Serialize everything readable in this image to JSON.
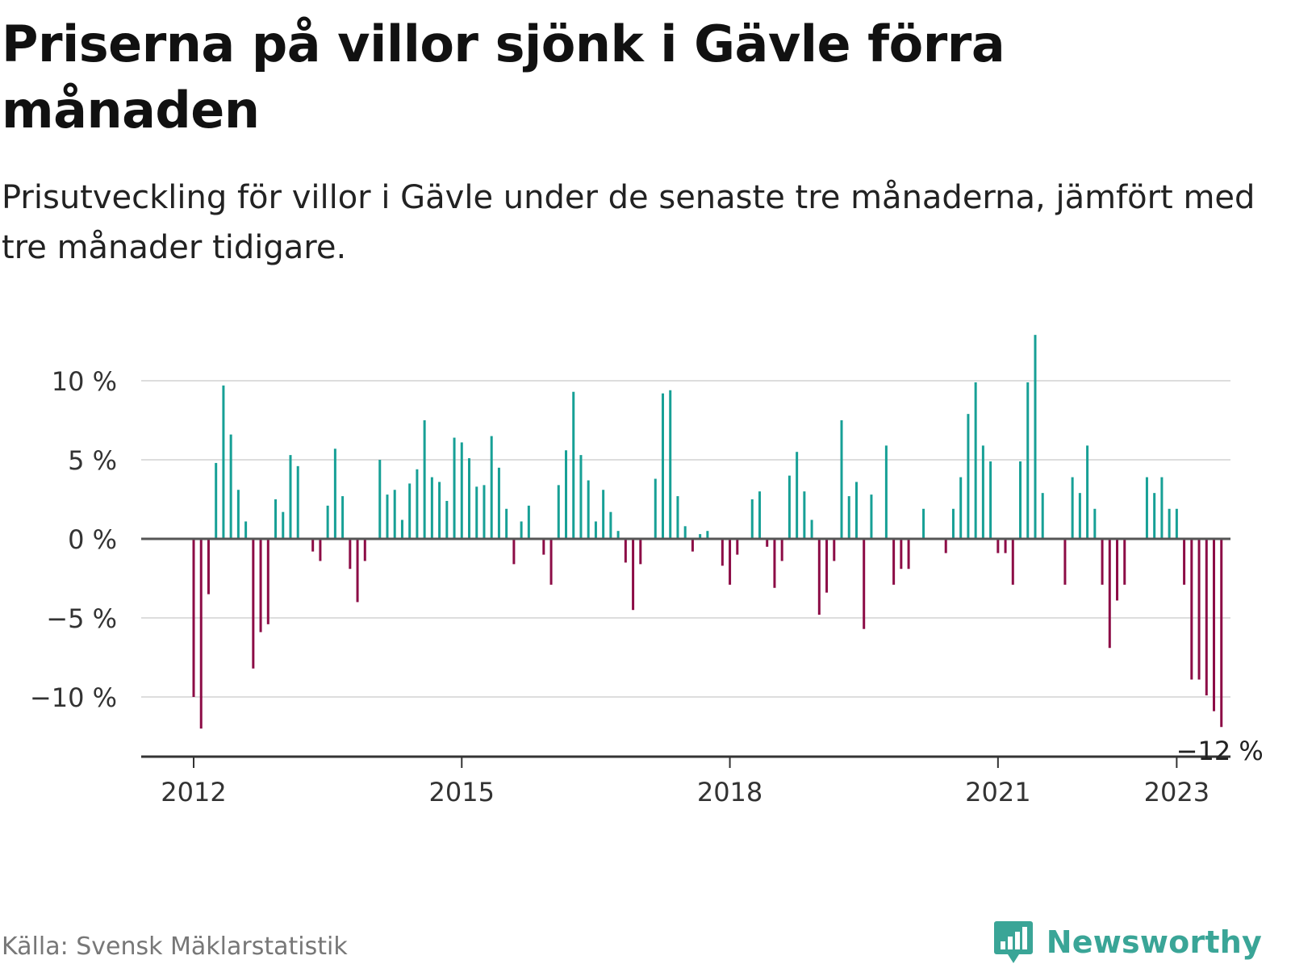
{
  "header": {
    "title": "Priserna på villor sjönk i Gävle förra månaden",
    "subtitle": "Prisutveckling för villor i Gävle under de senaste tre månaderna, jämfört med tre månader tidigare."
  },
  "footer": {
    "source": "Källa: Svensk Mäklarstatistik",
    "brand": "Newsworthy"
  },
  "colors": {
    "positive": "#17a096",
    "negative": "#8c0c46",
    "grid": "#dddddd",
    "axis": "#333333",
    "brand": "#3aa597"
  },
  "icons": {
    "brand_logo": "bar-chart-speech-bubble-icon"
  },
  "chart_data": {
    "type": "bar",
    "title": "Priserna på villor sjönk i Gävle förra månaden",
    "subtitle": "Prisutveckling för villor i Gävle under de senaste tre månaderna, jämfört med tre månader tidigare.",
    "xlabel": "",
    "ylabel": "",
    "unit": "%",
    "x_start": "2012-01",
    "x_ticks": [
      "2012",
      "2015",
      "2018",
      "2021",
      "2023"
    ],
    "y_ticks": [
      "10 %",
      "5 %",
      "0 %",
      "−5 %",
      "−10 %"
    ],
    "ylim": [
      -14,
      13
    ],
    "grid": true,
    "legend": "none",
    "annotation": "−12 %",
    "values": [
      -10,
      -12,
      -3.5,
      4.8,
      9.7,
      6.6,
      3.1,
      1.1,
      -8.2,
      -5.9,
      -5.4,
      2.5,
      1.7,
      5.3,
      4.6,
      0,
      -0.8,
      -1.4,
      2.1,
      5.7,
      2.7,
      -1.9,
      -4,
      -1.4,
      0,
      5,
      2.8,
      3.1,
      1.2,
      3.5,
      4.4,
      7.5,
      3.9,
      3.6,
      2.4,
      6.4,
      6.1,
      5.1,
      3.3,
      3.4,
      6.5,
      4.5,
      1.9,
      -1.6,
      1.1,
      2.1,
      0,
      -1,
      -2.9,
      3.4,
      5.6,
      9.3,
      5.3,
      3.7,
      1.1,
      3.1,
      1.7,
      0.5,
      -1.5,
      -4.5,
      -1.6,
      0,
      3.8,
      9.2,
      9.4,
      2.7,
      0.8,
      -0.8,
      0.3,
      0.5,
      0,
      -1.7,
      -2.9,
      -1,
      0,
      2.5,
      3,
      -0.5,
      -3.1,
      -1.4,
      4,
      5.5,
      3,
      1.2,
      -4.8,
      -3.4,
      -1.4,
      7.5,
      2.7,
      3.6,
      -5.7,
      2.8,
      0,
      5.9,
      -2.9,
      -1.9,
      -1.9,
      0,
      1.9,
      0,
      0,
      -0.9,
      1.9,
      3.9,
      7.9,
      9.9,
      5.9,
      4.9,
      -0.9,
      -0.9,
      -2.9,
      4.9,
      9.9,
      12.9,
      2.9,
      0,
      0,
      -2.9,
      3.9,
      2.9,
      5.9,
      1.9,
      -2.9,
      -6.9,
      -3.9,
      -2.9,
      0,
      0,
      3.9,
      2.9,
      3.9,
      1.9,
      1.9,
      -2.9,
      -8.9,
      -8.9,
      -9.9,
      -10.9,
      -11.9
    ]
  }
}
